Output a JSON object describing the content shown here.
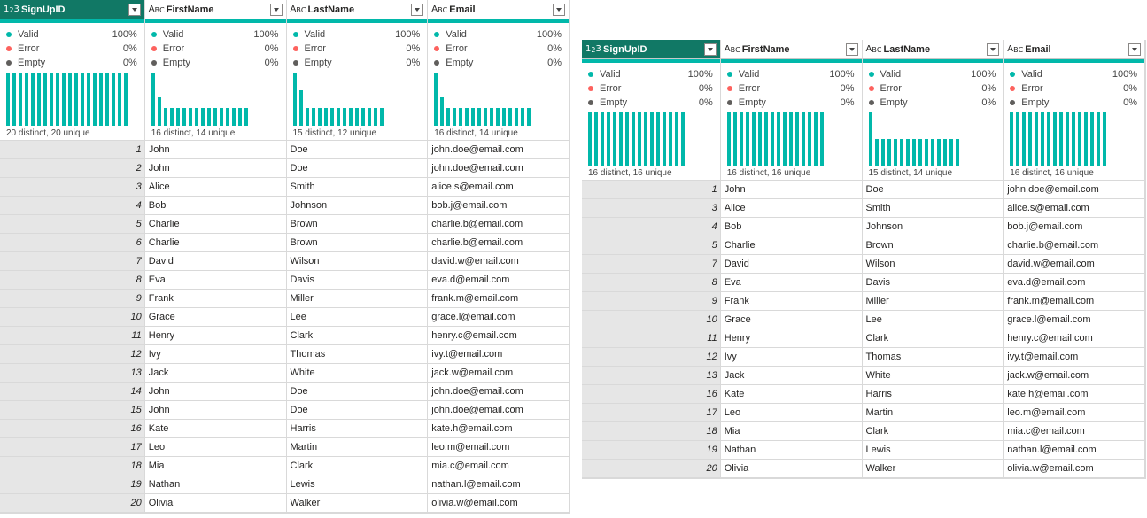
{
  "left": {
    "columns": [
      {
        "type": "num",
        "name": "SignUpID",
        "valid": "100%",
        "error": "0%",
        "empty": "0%",
        "distinct": "20 distinct, 20 unique",
        "hist": [
          1,
          1,
          1,
          1,
          1,
          1,
          1,
          1,
          1,
          1,
          1,
          1,
          1,
          1,
          1,
          1,
          1,
          1,
          1,
          1
        ]
      },
      {
        "type": "text",
        "name": "FirstName",
        "valid": "100%",
        "error": "0%",
        "empty": "0%",
        "distinct": "16 distinct, 14 unique",
        "hist": [
          3,
          1.6,
          1,
          1,
          1,
          1,
          1,
          1,
          1,
          1,
          1,
          1,
          1,
          1,
          1,
          1
        ]
      },
      {
        "type": "text",
        "name": "LastName",
        "valid": "100%",
        "error": "0%",
        "empty": "0%",
        "distinct": "15 distinct, 12 unique",
        "hist": [
          3,
          2,
          1,
          1,
          1,
          1,
          1,
          1,
          1,
          1,
          1,
          1,
          1,
          1,
          1
        ]
      },
      {
        "type": "text",
        "name": "Email",
        "valid": "100%",
        "error": "0%",
        "empty": "0%",
        "distinct": "16 distinct, 14 unique",
        "hist": [
          3,
          1.6,
          1,
          1,
          1,
          1,
          1,
          1,
          1,
          1,
          1,
          1,
          1,
          1,
          1,
          1
        ]
      }
    ],
    "rows": [
      [
        "1",
        "John",
        "Doe",
        "john.doe@email.com"
      ],
      [
        "2",
        "John",
        "Doe",
        "john.doe@email.com"
      ],
      [
        "3",
        "Alice",
        "Smith",
        "alice.s@email.com"
      ],
      [
        "4",
        "Bob",
        "Johnson",
        "bob.j@email.com"
      ],
      [
        "5",
        "Charlie",
        "Brown",
        "charlie.b@email.com"
      ],
      [
        "6",
        "Charlie",
        "Brown",
        "charlie.b@email.com"
      ],
      [
        "7",
        "David",
        "Wilson",
        "david.w@email.com"
      ],
      [
        "8",
        "Eva",
        "Davis",
        "eva.d@email.com"
      ],
      [
        "9",
        "Frank",
        "Miller",
        "frank.m@email.com"
      ],
      [
        "10",
        "Grace",
        "Lee",
        "grace.l@email.com"
      ],
      [
        "11",
        "Henry",
        "Clark",
        "henry.c@email.com"
      ],
      [
        "12",
        "Ivy",
        "Thomas",
        "ivy.t@email.com"
      ],
      [
        "13",
        "Jack",
        "White",
        "jack.w@email.com"
      ],
      [
        "14",
        "John",
        "Doe",
        "john.doe@email.com"
      ],
      [
        "15",
        "John",
        "Doe",
        "john.doe@email.com"
      ],
      [
        "16",
        "Kate",
        "Harris",
        "kate.h@email.com"
      ],
      [
        "17",
        "Leo",
        "Martin",
        "leo.m@email.com"
      ],
      [
        "18",
        "Mia",
        "Clark",
        "mia.c@email.com"
      ],
      [
        "19",
        "Nathan",
        "Lewis",
        "nathan.l@email.com"
      ],
      [
        "20",
        "Olivia",
        "Walker",
        "olivia.w@email.com"
      ]
    ]
  },
  "right": {
    "columns": [
      {
        "type": "num",
        "name": "SignUpID",
        "valid": "100%",
        "error": "0%",
        "empty": "0%",
        "distinct": "16 distinct, 16 unique",
        "hist": [
          1,
          1,
          1,
          1,
          1,
          1,
          1,
          1,
          1,
          1,
          1,
          1,
          1,
          1,
          1,
          1
        ]
      },
      {
        "type": "text",
        "name": "FirstName",
        "valid": "100%",
        "error": "0%",
        "empty": "0%",
        "distinct": "16 distinct, 16 unique",
        "hist": [
          1,
          1,
          1,
          1,
          1,
          1,
          1,
          1,
          1,
          1,
          1,
          1,
          1,
          1,
          1,
          1
        ]
      },
      {
        "type": "text",
        "name": "LastName",
        "valid": "100%",
        "error": "0%",
        "empty": "0%",
        "distinct": "15 distinct, 14 unique",
        "hist": [
          2,
          1,
          1,
          1,
          1,
          1,
          1,
          1,
          1,
          1,
          1,
          1,
          1,
          1,
          1
        ]
      },
      {
        "type": "text",
        "name": "Email",
        "valid": "100%",
        "error": "0%",
        "empty": "0%",
        "distinct": "16 distinct, 16 unique",
        "hist": [
          1,
          1,
          1,
          1,
          1,
          1,
          1,
          1,
          1,
          1,
          1,
          1,
          1,
          1,
          1,
          1
        ]
      }
    ],
    "rows": [
      [
        "1",
        "John",
        "Doe",
        "john.doe@email.com"
      ],
      [
        "3",
        "Alice",
        "Smith",
        "alice.s@email.com"
      ],
      [
        "4",
        "Bob",
        "Johnson",
        "bob.j@email.com"
      ],
      [
        "5",
        "Charlie",
        "Brown",
        "charlie.b@email.com"
      ],
      [
        "7",
        "David",
        "Wilson",
        "david.w@email.com"
      ],
      [
        "8",
        "Eva",
        "Davis",
        "eva.d@email.com"
      ],
      [
        "9",
        "Frank",
        "Miller",
        "frank.m@email.com"
      ],
      [
        "10",
        "Grace",
        "Lee",
        "grace.l@email.com"
      ],
      [
        "11",
        "Henry",
        "Clark",
        "henry.c@email.com"
      ],
      [
        "12",
        "Ivy",
        "Thomas",
        "ivy.t@email.com"
      ],
      [
        "13",
        "Jack",
        "White",
        "jack.w@email.com"
      ],
      [
        "16",
        "Kate",
        "Harris",
        "kate.h@email.com"
      ],
      [
        "17",
        "Leo",
        "Martin",
        "leo.m@email.com"
      ],
      [
        "18",
        "Mia",
        "Clark",
        "mia.c@email.com"
      ],
      [
        "19",
        "Nathan",
        "Lewis",
        "nathan.l@email.com"
      ],
      [
        "20",
        "Olivia",
        "Walker",
        "olivia.w@email.com"
      ]
    ]
  },
  "labels": {
    "valid": "Valid",
    "error": "Error",
    "empty": "Empty"
  },
  "colors": {
    "selected_header": "#117865",
    "valid": "#01b8aa",
    "error": "#fd625e",
    "empty": "#605e5c"
  }
}
